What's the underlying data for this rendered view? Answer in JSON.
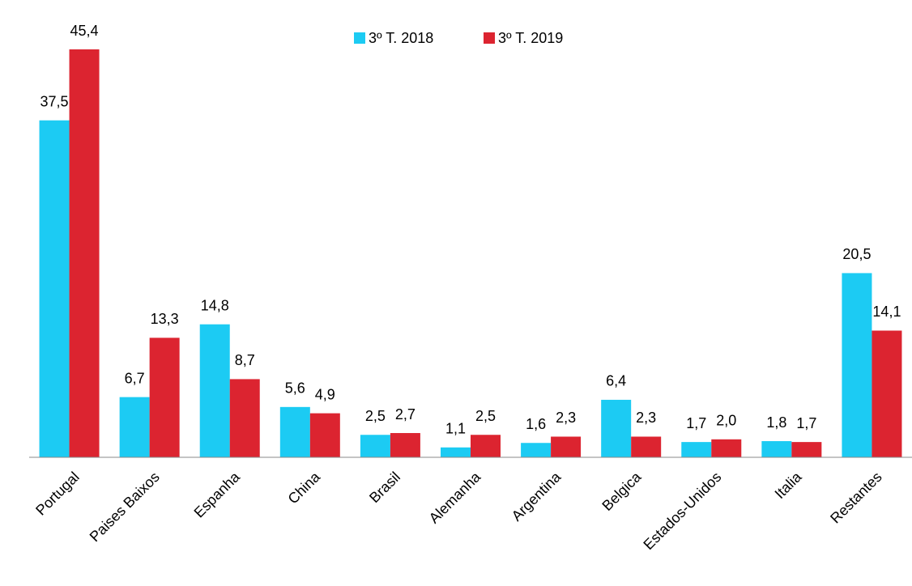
{
  "chart_data": {
    "type": "bar",
    "categories": [
      "Portugal",
      "Paises Baixos",
      "Espanha",
      "China",
      "Brasil",
      "Alemanha",
      "Argentina",
      "Belgica",
      "Estados-Unidos",
      "Italia",
      "Restantes"
    ],
    "series": [
      {
        "name": "3º T. 2018",
        "color": "#1ccbf3",
        "values": [
          37.5,
          6.7,
          14.8,
          5.6,
          2.5,
          1.1,
          1.6,
          6.4,
          1.7,
          1.8,
          20.5
        ],
        "value_labels": [
          "37,5",
          "6,7",
          "14,8",
          "5,6",
          "2,5",
          "1,1",
          "1,6",
          "6,4",
          "1,7",
          "1,8",
          "20,5"
        ]
      },
      {
        "name": "3º T. 2019",
        "color": "#dc2430",
        "values": [
          45.4,
          13.3,
          8.7,
          4.9,
          2.7,
          2.5,
          2.3,
          2.3,
          2.0,
          1.7,
          14.1
        ],
        "value_labels": [
          "45,4",
          "13,3",
          "8,7",
          "4,9",
          "2,7",
          "2,5",
          "2,3",
          "2,3",
          "2,0",
          "1,7",
          "14,1"
        ]
      }
    ],
    "legend": "top"
  }
}
